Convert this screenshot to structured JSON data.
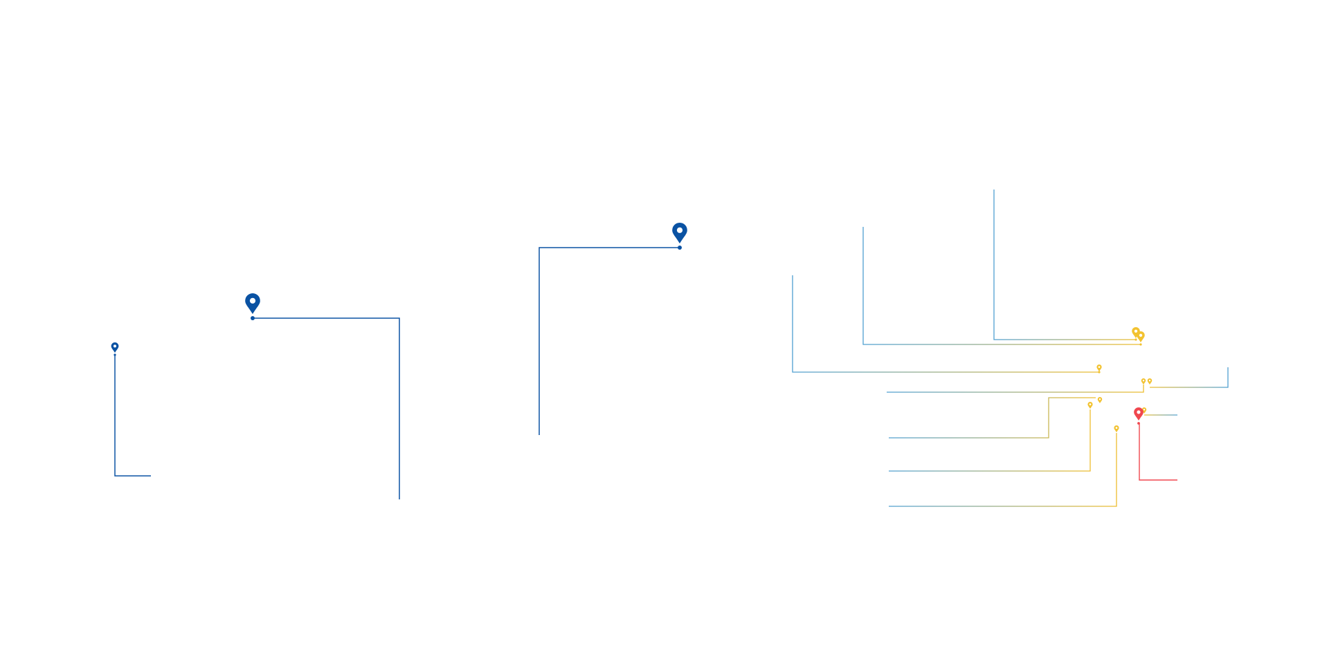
{
  "colors": {
    "background": "#ffffff",
    "route_blue": "#0a52a3",
    "gradient_start": "#4e9fd1",
    "gradient_end": "#edbd2e",
    "pin_yellow": "#f2c230",
    "pin_red": "#f0474e"
  },
  "icons": {
    "pin": "map-pin-icon"
  }
}
